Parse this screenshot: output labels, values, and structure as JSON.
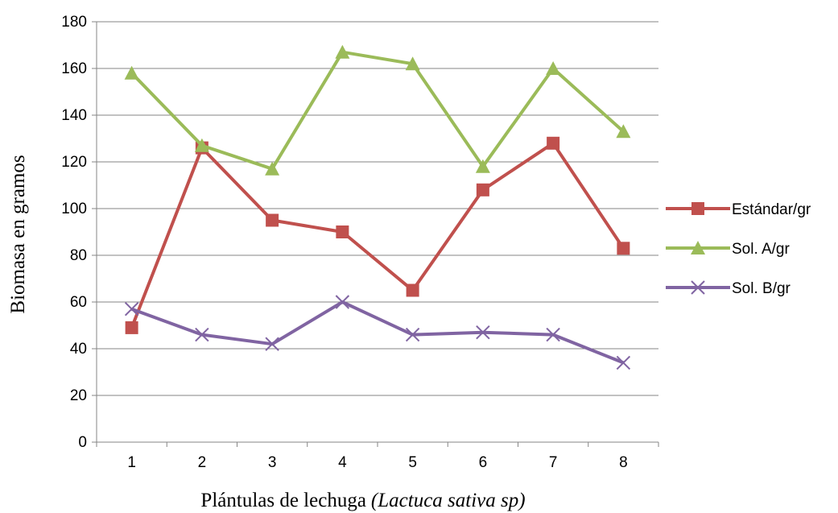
{
  "chart_data": {
    "type": "line",
    "title": "",
    "xlabel": "Plántulas de lechuga",
    "xlabel_italic": "(Lactuca sativa sp)",
    "ylabel": "Biomasa en gramos",
    "categories": [
      "1",
      "2",
      "3",
      "4",
      "5",
      "6",
      "7",
      "8"
    ],
    "ylim": [
      0,
      180
    ],
    "yticks": [
      "0",
      "20",
      "40",
      "60",
      "80",
      "100",
      "120",
      "140",
      "160",
      "180"
    ],
    "grid": "horizontal",
    "legend_position": "right",
    "series": [
      {
        "name": "Estándar/gr",
        "values": [
          49,
          126,
          95,
          90,
          65,
          108,
          128,
          83
        ],
        "color": "#c0504d",
        "marker": "square"
      },
      {
        "name": "Sol. A/gr",
        "values": [
          158,
          127,
          117,
          167,
          162,
          118,
          160,
          133
        ],
        "color": "#9bbb59",
        "marker": "triangle"
      },
      {
        "name": "Sol. B/gr",
        "values": [
          57,
          46,
          42,
          60,
          46,
          47,
          46,
          34
        ],
        "color": "#8064a2",
        "marker": "x"
      }
    ]
  }
}
